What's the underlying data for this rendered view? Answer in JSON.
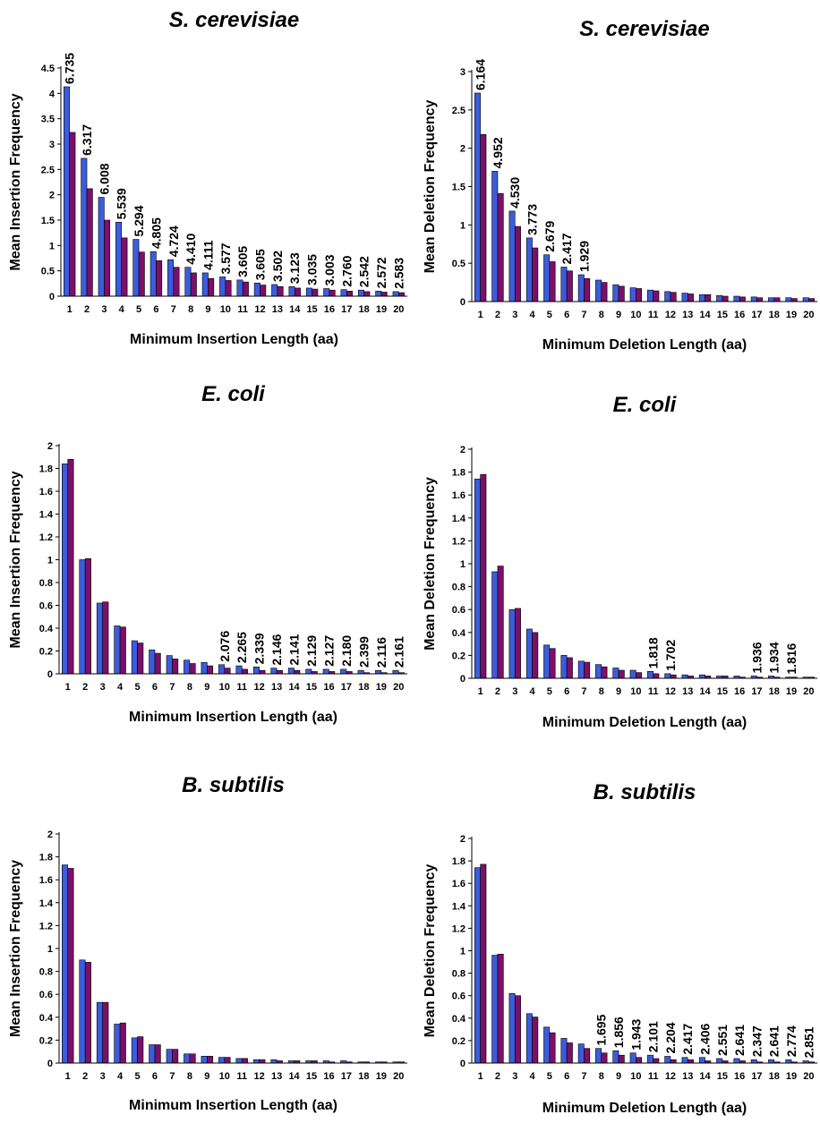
{
  "colors": {
    "series_a": "#3b5ddd",
    "series_b": "#7a1068",
    "edge": "#000000"
  },
  "chart_data": [
    {
      "type": "bar",
      "title": "S. cerevisiae",
      "xlabel": "Minimum Insertion Length (aa)",
      "ylabel": "Mean Insertion Frequency",
      "ylim": [
        0,
        4.5
      ],
      "yticks": [
        "0",
        "0.5",
        "1",
        "1.5",
        "2",
        "2.5",
        "3",
        "3.5",
        "4",
        "4.5"
      ],
      "categories": [
        "1",
        "2",
        "3",
        "4",
        "5",
        "6",
        "7",
        "8",
        "9",
        "10",
        "11",
        "12",
        "13",
        "14",
        "15",
        "16",
        "17",
        "18",
        "19",
        "20"
      ],
      "series": [
        {
          "values": [
            4.13,
            2.72,
            1.95,
            1.46,
            1.12,
            0.88,
            0.72,
            0.57,
            0.46,
            0.38,
            0.32,
            0.26,
            0.23,
            0.19,
            0.16,
            0.15,
            0.13,
            0.12,
            0.1,
            0.09
          ]
        },
        {
          "values": [
            3.23,
            2.12,
            1.5,
            1.15,
            0.87,
            0.7,
            0.57,
            0.46,
            0.35,
            0.31,
            0.28,
            0.22,
            0.19,
            0.16,
            0.14,
            0.12,
            0.1,
            0.09,
            0.08,
            0.07
          ]
        }
      ],
      "data_labels": [
        "6.735",
        "6.317",
        "6.008",
        "5.539",
        "5.294",
        "4.805",
        "4.724",
        "4.410",
        "4.111",
        "3.577",
        "3.605",
        "3.605",
        "3.502",
        "3.123",
        "3.035",
        "3.003",
        "2.760",
        "2.542",
        "2.572",
        "2.583"
      ]
    },
    {
      "type": "bar",
      "title": "S. cerevisiae",
      "xlabel": "Minimum Deletion Length (aa)",
      "ylabel": "Mean Deletion Frequency",
      "ylim": [
        0,
        3
      ],
      "yticks": [
        "0",
        "0.5",
        "1",
        "1.5",
        "2",
        "2.5",
        "3"
      ],
      "categories": [
        "1",
        "2",
        "3",
        "4",
        "5",
        "6",
        "7",
        "8",
        "9",
        "10",
        "11",
        "12",
        "13",
        "14",
        "15",
        "16",
        "17",
        "18",
        "19",
        "20"
      ],
      "series": [
        {
          "values": [
            2.72,
            1.7,
            1.18,
            0.83,
            0.61,
            0.45,
            0.35,
            0.28,
            0.22,
            0.18,
            0.15,
            0.13,
            0.11,
            0.09,
            0.08,
            0.07,
            0.06,
            0.05,
            0.05,
            0.05
          ]
        },
        {
          "values": [
            2.18,
            1.41,
            0.98,
            0.7,
            0.52,
            0.4,
            0.3,
            0.25,
            0.2,
            0.17,
            0.14,
            0.12,
            0.1,
            0.09,
            0.07,
            0.06,
            0.05,
            0.05,
            0.04,
            0.04
          ]
        }
      ],
      "data_labels": [
        "6.164",
        "4.952",
        "4.530",
        "3.773",
        "2.679",
        "2.417",
        "1.929",
        "",
        "",
        "",
        "",
        "",
        "",
        "",
        "",
        "",
        "",
        "",
        "",
        ""
      ]
    },
    {
      "type": "bar",
      "title": "E. coli",
      "xlabel": "Minimum Insertion Length (aa)",
      "ylabel": "Mean Insertion Frequency",
      "ylim": [
        0,
        2
      ],
      "yticks": [
        "0",
        "0.2",
        "0.4",
        "0.6",
        "0.8",
        "1",
        "1.2",
        "1.4",
        "1.6",
        "1.8",
        "2"
      ],
      "categories": [
        "1",
        "2",
        "3",
        "4",
        "5",
        "6",
        "7",
        "8",
        "9",
        "10",
        "11",
        "12",
        "13",
        "14",
        "15",
        "16",
        "17",
        "18",
        "19",
        "20"
      ],
      "series": [
        {
          "values": [
            1.84,
            1.0,
            0.62,
            0.42,
            0.29,
            0.21,
            0.16,
            0.12,
            0.1,
            0.08,
            0.07,
            0.06,
            0.05,
            0.05,
            0.04,
            0.04,
            0.04,
            0.03,
            0.03,
            0.03
          ]
        },
        {
          "values": [
            1.88,
            1.01,
            0.63,
            0.41,
            0.27,
            0.18,
            0.13,
            0.09,
            0.07,
            0.05,
            0.04,
            0.03,
            0.03,
            0.03,
            0.02,
            0.02,
            0.02,
            0.01,
            0.01,
            0.01
          ]
        }
      ],
      "data_labels": [
        "",
        "",
        "",
        "",
        "",
        "",
        "",
        "",
        "",
        "2.076",
        "2.265",
        "2.339",
        "2.146",
        "2.141",
        "2.129",
        "2.127",
        "2.180",
        "2.399",
        "2.116",
        "2.161"
      ]
    },
    {
      "type": "bar",
      "title": "E. coli",
      "xlabel": "Minimum Deletion Length (aa)",
      "ylabel": "Mean Deletion Frequency",
      "ylim": [
        0,
        2
      ],
      "yticks": [
        "0",
        "0.2",
        "0.4",
        "0.6",
        "0.8",
        "1",
        "1.2",
        "1.4",
        "1.6",
        "1.8",
        "2"
      ],
      "categories": [
        "1",
        "2",
        "3",
        "4",
        "5",
        "6",
        "7",
        "8",
        "9",
        "10",
        "11",
        "12",
        "13",
        "14",
        "15",
        "16",
        "17",
        "18",
        "19",
        "20"
      ],
      "series": [
        {
          "values": [
            1.74,
            0.93,
            0.6,
            0.43,
            0.29,
            0.2,
            0.15,
            0.12,
            0.09,
            0.07,
            0.06,
            0.04,
            0.03,
            0.03,
            0.02,
            0.02,
            0.02,
            0.02,
            0.01,
            0.01
          ]
        },
        {
          "values": [
            1.78,
            0.98,
            0.61,
            0.4,
            0.26,
            0.18,
            0.14,
            0.1,
            0.07,
            0.05,
            0.04,
            0.03,
            0.02,
            0.02,
            0.02,
            0.01,
            0.01,
            0.01,
            0.01,
            0.01
          ]
        }
      ],
      "data_labels": [
        "",
        "",
        "",
        "",
        "",
        "",
        "",
        "",
        "",
        "",
        "1.818",
        "1.702",
        "",
        "",
        "",
        "",
        "1.936",
        "1.934",
        "1.816",
        ""
      ]
    },
    {
      "type": "bar",
      "title": "B. subtilis",
      "xlabel": "Minimum Insertion Length (aa)",
      "ylabel": "Mean Insertion Frequency",
      "ylim": [
        0,
        2
      ],
      "yticks": [
        "0",
        "0.2",
        "0.4",
        "0.6",
        "0.8",
        "1",
        "1.2",
        "1.4",
        "1.6",
        "1.8",
        "2"
      ],
      "categories": [
        "1",
        "2",
        "3",
        "4",
        "5",
        "6",
        "7",
        "8",
        "9",
        "10",
        "11",
        "12",
        "13",
        "14",
        "15",
        "16",
        "17",
        "18",
        "19",
        "20"
      ],
      "series": [
        {
          "values": [
            1.73,
            0.9,
            0.53,
            0.34,
            0.22,
            0.16,
            0.12,
            0.08,
            0.06,
            0.05,
            0.04,
            0.03,
            0.03,
            0.02,
            0.02,
            0.02,
            0.02,
            0.01,
            0.01,
            0.01
          ]
        },
        {
          "values": [
            1.7,
            0.88,
            0.53,
            0.35,
            0.23,
            0.16,
            0.12,
            0.08,
            0.06,
            0.05,
            0.04,
            0.03,
            0.02,
            0.02,
            0.02,
            0.01,
            0.01,
            0.01,
            0.01,
            0.01
          ]
        }
      ],
      "data_labels": [
        "",
        "",
        "",
        "",
        "",
        "",
        "",
        "",
        "",
        "",
        "",
        "",
        "",
        "",
        "",
        "",
        "",
        "",
        "",
        ""
      ]
    },
    {
      "type": "bar",
      "title": "B. subtilis",
      "xlabel": "Minimum Deletion Length (aa)",
      "ylabel": "Mean Deletion Frequency",
      "ylim": [
        0,
        2
      ],
      "yticks": [
        "0",
        "0.2",
        "0.4",
        "0.6",
        "0.8",
        "1",
        "1.2",
        "1.4",
        "1.6",
        "1.8",
        "2"
      ],
      "categories": [
        "1",
        "2",
        "3",
        "4",
        "5",
        "6",
        "7",
        "8",
        "9",
        "10",
        "11",
        "12",
        "13",
        "14",
        "15",
        "16",
        "17",
        "18",
        "19",
        "20"
      ],
      "series": [
        {
          "values": [
            1.74,
            0.96,
            0.62,
            0.44,
            0.32,
            0.22,
            0.17,
            0.13,
            0.11,
            0.09,
            0.07,
            0.06,
            0.05,
            0.05,
            0.04,
            0.04,
            0.03,
            0.03,
            0.03,
            0.02
          ]
        },
        {
          "values": [
            1.77,
            0.97,
            0.6,
            0.41,
            0.27,
            0.18,
            0.13,
            0.09,
            0.07,
            0.05,
            0.04,
            0.03,
            0.03,
            0.02,
            0.02,
            0.02,
            0.01,
            0.01,
            0.01,
            0.01
          ]
        }
      ],
      "data_labels": [
        "",
        "",
        "",
        "",
        "",
        "",
        "",
        "1.695",
        "1.856",
        "1.943",
        "2.101",
        "2.204",
        "2.417",
        "2.406",
        "2.551",
        "2.641",
        "2.347",
        "2.641",
        "2.774",
        "2.851"
      ]
    }
  ]
}
